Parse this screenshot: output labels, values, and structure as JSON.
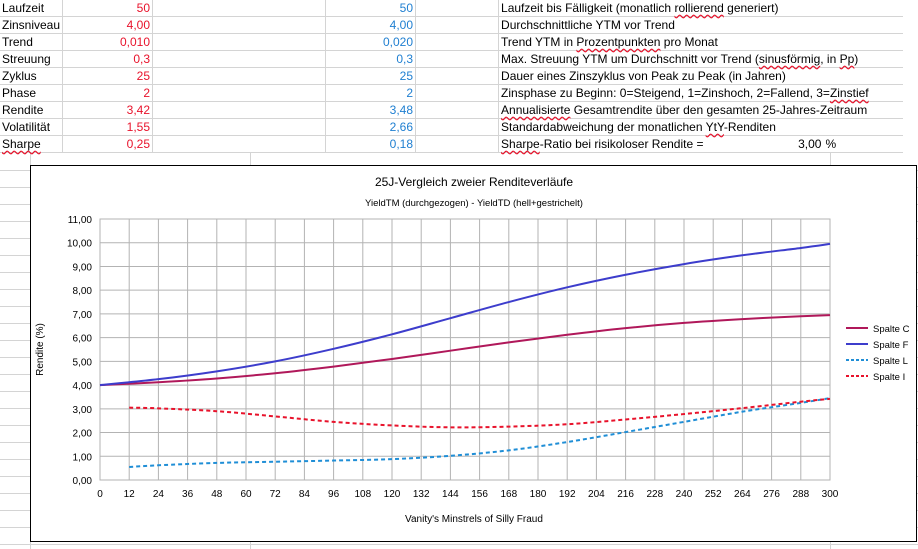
{
  "sheet": {
    "rows": [
      {
        "label": "Laufzeit",
        "v1": "50",
        "v2": "50",
        "desc_parts": [
          {
            "t": "Laufzeit bis Fälligkeit (monatlich "
          },
          {
            "t": "rollierend",
            "sq": true
          },
          {
            "t": " generiert)"
          }
        ]
      },
      {
        "label": "Zinsniveau",
        "v1": "4,00",
        "v2": "4,00",
        "desc_parts": [
          {
            "t": "Durchschnittliche YTM vor Trend"
          }
        ]
      },
      {
        "label": "Trend",
        "v1": "0,010",
        "v2": "0,020",
        "desc_parts": [
          {
            "t": "Trend YTM in "
          },
          {
            "t": "Prozentpunkten",
            "sq": true
          },
          {
            "t": " pro Monat"
          }
        ]
      },
      {
        "label": "Streuung",
        "v1": "0,3",
        "v2": "0,3",
        "desc_parts": [
          {
            "t": "Max. Streuung YTM um Durchschnitt vor Trend ("
          },
          {
            "t": "sinusförmig",
            "sq": true
          },
          {
            "t": ", in "
          },
          {
            "t": "Pp",
            "sq": true
          },
          {
            "t": ")"
          }
        ]
      },
      {
        "label": "Zyklus",
        "v1": "25",
        "v2": "25",
        "desc_parts": [
          {
            "t": "Dauer eines Zinszyklus von Peak zu Peak (in Jahren)"
          }
        ]
      },
      {
        "label": "Phase",
        "v1": "2",
        "v2": "2",
        "desc_parts": [
          {
            "t": "Zinsphase zu Beginn: 0=Steigend, 1=Zinshoch, 2=Fallend, 3="
          },
          {
            "t": "Zinstief",
            "sq": true
          }
        ]
      },
      {
        "label": "Rendite",
        "v1": "3,42",
        "v2": "3,48",
        "desc_parts": [
          {
            "t": "Annualisierte",
            "sq": true
          },
          {
            "t": " Gesamtrendite über den gesamten 25-Jahres-Zeitraum"
          }
        ]
      },
      {
        "label": "Volatilität",
        "v1": "1,55",
        "v2": "2,66",
        "desc_parts": [
          {
            "t": "Standardabweichung der monatlichen "
          },
          {
            "t": "YtY",
            "sq": true
          },
          {
            "t": "-Renditen"
          }
        ]
      },
      {
        "label": "Sharpe",
        "label_sq": true,
        "v1": "0,25",
        "v2": "0,18",
        "desc_parts": [
          {
            "t": "Sharpe",
            "sq": true
          },
          {
            "t": "-Ratio bei risikoloser Rendite ="
          }
        ],
        "extra_value": "3,00",
        "extra_unit": "%"
      }
    ]
  },
  "chart_data": {
    "type": "line",
    "title": "25J-Vergleich zweier Renditeverläufe",
    "subtitle": "YieldTM (durchgezogen) - YieldTD (hell+gestrichelt)",
    "xlabel": "Vanity's Minstrels of Silly Fraud",
    "ylabel": "Rendite (%)",
    "xlim": [
      0,
      300
    ],
    "ylim": [
      0,
      11
    ],
    "x_ticks": [
      0,
      12,
      24,
      36,
      48,
      60,
      72,
      84,
      96,
      108,
      120,
      132,
      144,
      156,
      168,
      180,
      192,
      204,
      216,
      228,
      240,
      252,
      264,
      276,
      288,
      300
    ],
    "y_ticks": [
      "0,00",
      "1,00",
      "2,00",
      "3,00",
      "4,00",
      "5,00",
      "6,00",
      "7,00",
      "8,00",
      "9,00",
      "10,00",
      "11,00"
    ],
    "grid": true,
    "legend_position": "right",
    "series": [
      {
        "name": "Spalte C",
        "color": "#b0185a",
        "dash": false,
        "points": [
          [
            0,
            4.0
          ],
          [
            24,
            4.12
          ],
          [
            48,
            4.28
          ],
          [
            72,
            4.5
          ],
          [
            96,
            4.78
          ],
          [
            120,
            5.1
          ],
          [
            144,
            5.45
          ],
          [
            168,
            5.8
          ],
          [
            192,
            6.12
          ],
          [
            216,
            6.4
          ],
          [
            240,
            6.62
          ],
          [
            264,
            6.78
          ],
          [
            288,
            6.9
          ],
          [
            300,
            6.95
          ]
        ]
      },
      {
        "name": "Spalte F",
        "color": "#3d3dcc",
        "dash": false,
        "points": [
          [
            0,
            4.0
          ],
          [
            24,
            4.25
          ],
          [
            48,
            4.58
          ],
          [
            72,
            5.0
          ],
          [
            96,
            5.53
          ],
          [
            120,
            6.14
          ],
          [
            144,
            6.82
          ],
          [
            168,
            7.5
          ],
          [
            192,
            8.12
          ],
          [
            216,
            8.65
          ],
          [
            240,
            9.1
          ],
          [
            264,
            9.47
          ],
          [
            288,
            9.78
          ],
          [
            300,
            9.95
          ]
        ]
      },
      {
        "name": "Spalte L",
        "color": "#1f8ed6",
        "dash": true,
        "points": [
          [
            12,
            0.55
          ],
          [
            24,
            0.62
          ],
          [
            48,
            0.72
          ],
          [
            72,
            0.77
          ],
          [
            96,
            0.82
          ],
          [
            120,
            0.88
          ],
          [
            144,
            1.02
          ],
          [
            168,
            1.25
          ],
          [
            192,
            1.6
          ],
          [
            216,
            2.02
          ],
          [
            240,
            2.45
          ],
          [
            264,
            2.88
          ],
          [
            288,
            3.25
          ],
          [
            300,
            3.45
          ]
        ]
      },
      {
        "name": "Spalte I",
        "color": "#e8122b",
        "dash": true,
        "points": [
          [
            12,
            3.05
          ],
          [
            24,
            3.02
          ],
          [
            48,
            2.9
          ],
          [
            72,
            2.68
          ],
          [
            96,
            2.45
          ],
          [
            120,
            2.3
          ],
          [
            144,
            2.22
          ],
          [
            168,
            2.25
          ],
          [
            192,
            2.35
          ],
          [
            216,
            2.55
          ],
          [
            240,
            2.78
          ],
          [
            264,
            3.03
          ],
          [
            288,
            3.3
          ],
          [
            300,
            3.42
          ]
        ]
      }
    ]
  }
}
